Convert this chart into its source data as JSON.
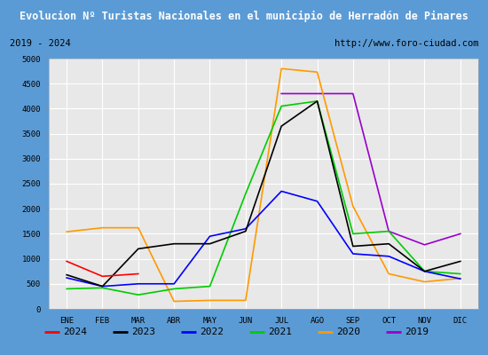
{
  "title": "Evolucion Nº Turistas Nacionales en el municipio de Herradón de Pinares",
  "subtitle_left": "2019 - 2024",
  "subtitle_right": "http://www.foro-ciudad.com",
  "months": [
    "ENE",
    "FEB",
    "MAR",
    "ABR",
    "MAY",
    "JUN",
    "JUL",
    "AGO",
    "SEP",
    "OCT",
    "NOV",
    "DIC"
  ],
  "series": {
    "2024": {
      "color": "#ff0000",
      "data": [
        950,
        650,
        700,
        null,
        null,
        null,
        null,
        null,
        null,
        null,
        null,
        null
      ]
    },
    "2023": {
      "color": "#000000",
      "data": [
        680,
        450,
        1200,
        1300,
        1300,
        1550,
        3650,
        4150,
        1250,
        1300,
        750,
        950
      ]
    },
    "2022": {
      "color": "#0000ff",
      "data": [
        620,
        450,
        500,
        500,
        1450,
        1600,
        2350,
        2150,
        1100,
        1050,
        750,
        600
      ]
    },
    "2021": {
      "color": "#00cc00",
      "data": [
        400,
        420,
        280,
        400,
        450,
        2300,
        4050,
        4150,
        1500,
        1550,
        750,
        700
      ]
    },
    "2020": {
      "color": "#ff9900",
      "data": [
        1540,
        1620,
        1620,
        150,
        170,
        170,
        4800,
        4730,
        2050,
        700,
        540,
        610
      ]
    },
    "2019": {
      "color": "#9900cc",
      "data": [
        null,
        null,
        null,
        null,
        null,
        null,
        4300,
        4300,
        4300,
        1550,
        1280,
        1500
      ]
    }
  },
  "ylim": [
    0,
    5000
  ],
  "yticks": [
    0,
    500,
    1000,
    1500,
    2000,
    2500,
    3000,
    3500,
    4000,
    4500,
    5000
  ],
  "title_bg_color": "#5b9bd5",
  "title_text_color": "#ffffff",
  "plot_bg_color": "#e8e8e8",
  "grid_color": "#ffffff",
  "border_color": "#5b9bd5",
  "subtitle_box_bg": "#d9d9d9",
  "legend_items": [
    "2024",
    "2023",
    "2022",
    "2021",
    "2020",
    "2019"
  ]
}
